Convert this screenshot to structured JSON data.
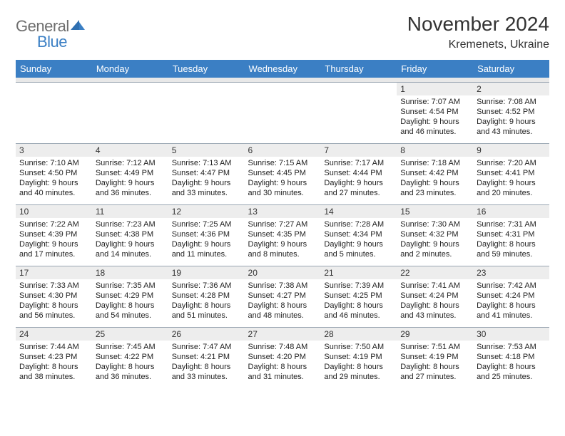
{
  "colors": {
    "header_bg": "#3b7fc4",
    "header_text": "#ffffff",
    "daynum_bg": "#ededed",
    "spacer_bg": "#e8e8e8",
    "border": "#9aa6b2",
    "logo_gray": "#6e6e6e",
    "logo_blue": "#3b7fc4"
  },
  "logo": {
    "part1": "General",
    "part2": "Blue"
  },
  "title": "November 2024",
  "subtitle": "Kremenets, Ukraine",
  "weekdays": [
    "Sunday",
    "Monday",
    "Tuesday",
    "Wednesday",
    "Thursday",
    "Friday",
    "Saturday"
  ],
  "weeks": [
    [
      {
        "n": "",
        "sr": "",
        "ss": "",
        "dl": ""
      },
      {
        "n": "",
        "sr": "",
        "ss": "",
        "dl": ""
      },
      {
        "n": "",
        "sr": "",
        "ss": "",
        "dl": ""
      },
      {
        "n": "",
        "sr": "",
        "ss": "",
        "dl": ""
      },
      {
        "n": "",
        "sr": "",
        "ss": "",
        "dl": ""
      },
      {
        "n": "1",
        "sr": "Sunrise: 7:07 AM",
        "ss": "Sunset: 4:54 PM",
        "dl": "Daylight: 9 hours and 46 minutes."
      },
      {
        "n": "2",
        "sr": "Sunrise: 7:08 AM",
        "ss": "Sunset: 4:52 PM",
        "dl": "Daylight: 9 hours and 43 minutes."
      }
    ],
    [
      {
        "n": "3",
        "sr": "Sunrise: 7:10 AM",
        "ss": "Sunset: 4:50 PM",
        "dl": "Daylight: 9 hours and 40 minutes."
      },
      {
        "n": "4",
        "sr": "Sunrise: 7:12 AM",
        "ss": "Sunset: 4:49 PM",
        "dl": "Daylight: 9 hours and 36 minutes."
      },
      {
        "n": "5",
        "sr": "Sunrise: 7:13 AM",
        "ss": "Sunset: 4:47 PM",
        "dl": "Daylight: 9 hours and 33 minutes."
      },
      {
        "n": "6",
        "sr": "Sunrise: 7:15 AM",
        "ss": "Sunset: 4:45 PM",
        "dl": "Daylight: 9 hours and 30 minutes."
      },
      {
        "n": "7",
        "sr": "Sunrise: 7:17 AM",
        "ss": "Sunset: 4:44 PM",
        "dl": "Daylight: 9 hours and 27 minutes."
      },
      {
        "n": "8",
        "sr": "Sunrise: 7:18 AM",
        "ss": "Sunset: 4:42 PM",
        "dl": "Daylight: 9 hours and 23 minutes."
      },
      {
        "n": "9",
        "sr": "Sunrise: 7:20 AM",
        "ss": "Sunset: 4:41 PM",
        "dl": "Daylight: 9 hours and 20 minutes."
      }
    ],
    [
      {
        "n": "10",
        "sr": "Sunrise: 7:22 AM",
        "ss": "Sunset: 4:39 PM",
        "dl": "Daylight: 9 hours and 17 minutes."
      },
      {
        "n": "11",
        "sr": "Sunrise: 7:23 AM",
        "ss": "Sunset: 4:38 PM",
        "dl": "Daylight: 9 hours and 14 minutes."
      },
      {
        "n": "12",
        "sr": "Sunrise: 7:25 AM",
        "ss": "Sunset: 4:36 PM",
        "dl": "Daylight: 9 hours and 11 minutes."
      },
      {
        "n": "13",
        "sr": "Sunrise: 7:27 AM",
        "ss": "Sunset: 4:35 PM",
        "dl": "Daylight: 9 hours and 8 minutes."
      },
      {
        "n": "14",
        "sr": "Sunrise: 7:28 AM",
        "ss": "Sunset: 4:34 PM",
        "dl": "Daylight: 9 hours and 5 minutes."
      },
      {
        "n": "15",
        "sr": "Sunrise: 7:30 AM",
        "ss": "Sunset: 4:32 PM",
        "dl": "Daylight: 9 hours and 2 minutes."
      },
      {
        "n": "16",
        "sr": "Sunrise: 7:31 AM",
        "ss": "Sunset: 4:31 PM",
        "dl": "Daylight: 8 hours and 59 minutes."
      }
    ],
    [
      {
        "n": "17",
        "sr": "Sunrise: 7:33 AM",
        "ss": "Sunset: 4:30 PM",
        "dl": "Daylight: 8 hours and 56 minutes."
      },
      {
        "n": "18",
        "sr": "Sunrise: 7:35 AM",
        "ss": "Sunset: 4:29 PM",
        "dl": "Daylight: 8 hours and 54 minutes."
      },
      {
        "n": "19",
        "sr": "Sunrise: 7:36 AM",
        "ss": "Sunset: 4:28 PM",
        "dl": "Daylight: 8 hours and 51 minutes."
      },
      {
        "n": "20",
        "sr": "Sunrise: 7:38 AM",
        "ss": "Sunset: 4:27 PM",
        "dl": "Daylight: 8 hours and 48 minutes."
      },
      {
        "n": "21",
        "sr": "Sunrise: 7:39 AM",
        "ss": "Sunset: 4:25 PM",
        "dl": "Daylight: 8 hours and 46 minutes."
      },
      {
        "n": "22",
        "sr": "Sunrise: 7:41 AM",
        "ss": "Sunset: 4:24 PM",
        "dl": "Daylight: 8 hours and 43 minutes."
      },
      {
        "n": "23",
        "sr": "Sunrise: 7:42 AM",
        "ss": "Sunset: 4:24 PM",
        "dl": "Daylight: 8 hours and 41 minutes."
      }
    ],
    [
      {
        "n": "24",
        "sr": "Sunrise: 7:44 AM",
        "ss": "Sunset: 4:23 PM",
        "dl": "Daylight: 8 hours and 38 minutes."
      },
      {
        "n": "25",
        "sr": "Sunrise: 7:45 AM",
        "ss": "Sunset: 4:22 PM",
        "dl": "Daylight: 8 hours and 36 minutes."
      },
      {
        "n": "26",
        "sr": "Sunrise: 7:47 AM",
        "ss": "Sunset: 4:21 PM",
        "dl": "Daylight: 8 hours and 33 minutes."
      },
      {
        "n": "27",
        "sr": "Sunrise: 7:48 AM",
        "ss": "Sunset: 4:20 PM",
        "dl": "Daylight: 8 hours and 31 minutes."
      },
      {
        "n": "28",
        "sr": "Sunrise: 7:50 AM",
        "ss": "Sunset: 4:19 PM",
        "dl": "Daylight: 8 hours and 29 minutes."
      },
      {
        "n": "29",
        "sr": "Sunrise: 7:51 AM",
        "ss": "Sunset: 4:19 PM",
        "dl": "Daylight: 8 hours and 27 minutes."
      },
      {
        "n": "30",
        "sr": "Sunrise: 7:53 AM",
        "ss": "Sunset: 4:18 PM",
        "dl": "Daylight: 8 hours and 25 minutes."
      }
    ]
  ]
}
